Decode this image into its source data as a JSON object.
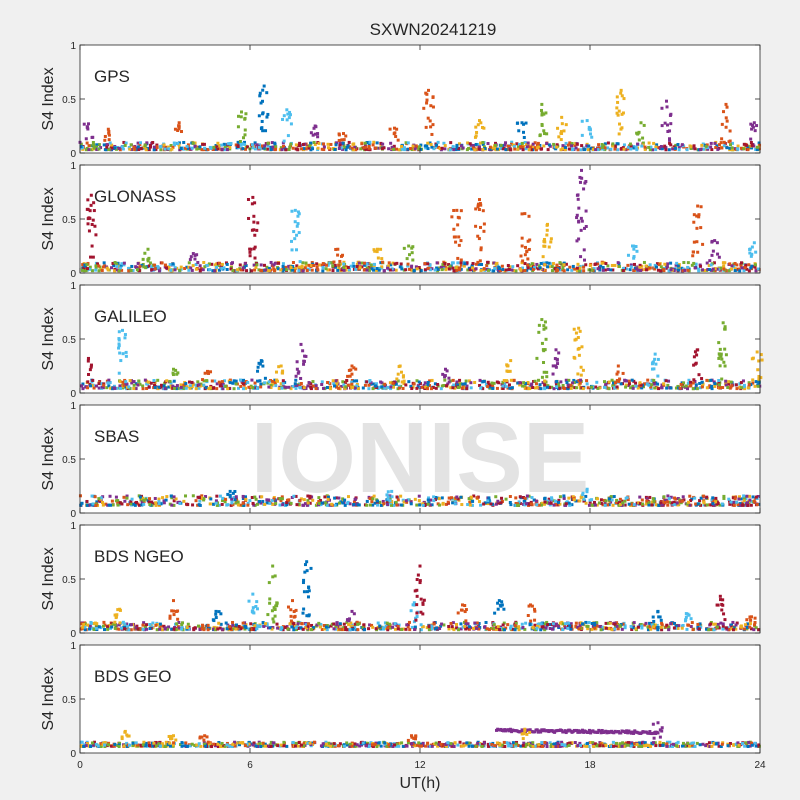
{
  "figure": {
    "title": "SXWN20241219",
    "xlabel": "UT(h)",
    "watermark": "IONISE",
    "colors": [
      "#0072BD",
      "#D95319",
      "#EDB120",
      "#7E2F8E",
      "#77AC30",
      "#4DBEEE",
      "#A2142F"
    ]
  },
  "chart_data": [
    {
      "type": "scatter",
      "label": "GPS",
      "ylabel": "S4 Index",
      "xlim": [
        0,
        24
      ],
      "ylim": [
        0,
        1
      ],
      "xticks": [
        0,
        6,
        12,
        18,
        24
      ],
      "yticks": [
        0,
        0.5,
        1
      ],
      "ytick_labels": [
        "0",
        "0.5",
        "1"
      ],
      "baseline": [
        0.03,
        0.1
      ],
      "spikes": [
        {
          "x": 0.3,
          "y": 0.27,
          "c": 3
        },
        {
          "x": 1.0,
          "y": 0.22,
          "c": 1
        },
        {
          "x": 3.5,
          "y": 0.28,
          "c": 1
        },
        {
          "x": 5.7,
          "y": 0.38,
          "c": 4
        },
        {
          "x": 6.5,
          "y": 0.62,
          "c": 0
        },
        {
          "x": 7.3,
          "y": 0.4,
          "c": 5
        },
        {
          "x": 8.3,
          "y": 0.25,
          "c": 3
        },
        {
          "x": 9.3,
          "y": 0.18,
          "c": 1
        },
        {
          "x": 11.1,
          "y": 0.23,
          "c": 1
        },
        {
          "x": 12.3,
          "y": 0.58,
          "c": 1
        },
        {
          "x": 14.1,
          "y": 0.3,
          "c": 2
        },
        {
          "x": 15.6,
          "y": 0.28,
          "c": 0
        },
        {
          "x": 16.3,
          "y": 0.45,
          "c": 4
        },
        {
          "x": 17.0,
          "y": 0.33,
          "c": 2
        },
        {
          "x": 17.9,
          "y": 0.3,
          "c": 5
        },
        {
          "x": 19.1,
          "y": 0.58,
          "c": 2
        },
        {
          "x": 19.8,
          "y": 0.28,
          "c": 4
        },
        {
          "x": 20.7,
          "y": 0.48,
          "c": 3
        },
        {
          "x": 22.8,
          "y": 0.45,
          "c": 1
        },
        {
          "x": 23.8,
          "y": 0.28,
          "c": 3
        }
      ]
    },
    {
      "type": "scatter",
      "label": "GLONASS",
      "ylabel": "S4 Index",
      "xlim": [
        0,
        24
      ],
      "ylim": [
        0,
        1
      ],
      "xticks": [
        0,
        6,
        12,
        18,
        24
      ],
      "yticks": [
        0,
        0.5,
        1
      ],
      "ytick_labels": [
        "0",
        "0.5",
        "1"
      ],
      "baseline": [
        0.02,
        0.1
      ],
      "spikes": [
        {
          "x": 0.4,
          "y": 0.72,
          "c": 6
        },
        {
          "x": 2.4,
          "y": 0.22,
          "c": 4
        },
        {
          "x": 4.0,
          "y": 0.18,
          "c": 3
        },
        {
          "x": 6.1,
          "y": 0.7,
          "c": 6
        },
        {
          "x": 7.6,
          "y": 0.58,
          "c": 5
        },
        {
          "x": 9.1,
          "y": 0.22,
          "c": 1
        },
        {
          "x": 10.5,
          "y": 0.22,
          "c": 2
        },
        {
          "x": 11.6,
          "y": 0.25,
          "c": 4
        },
        {
          "x": 13.3,
          "y": 0.58,
          "c": 1
        },
        {
          "x": 14.1,
          "y": 0.68,
          "c": 1
        },
        {
          "x": 15.7,
          "y": 0.55,
          "c": 1
        },
        {
          "x": 16.5,
          "y": 0.45,
          "c": 2
        },
        {
          "x": 17.7,
          "y": 0.95,
          "c": 3
        },
        {
          "x": 19.5,
          "y": 0.25,
          "c": 5
        },
        {
          "x": 21.8,
          "y": 0.62,
          "c": 1
        },
        {
          "x": 22.4,
          "y": 0.3,
          "c": 3
        },
        {
          "x": 23.8,
          "y": 0.28,
          "c": 5
        }
      ]
    },
    {
      "type": "scatter",
      "label": "GALILEO",
      "ylabel": "S4 Index",
      "xlim": [
        0,
        24
      ],
      "ylim": [
        0,
        1
      ],
      "xticks": [
        0,
        6,
        12,
        18,
        24
      ],
      "yticks": [
        0,
        0.5,
        1
      ],
      "ytick_labels": [
        "0",
        "0.5",
        "1"
      ],
      "baseline": [
        0.04,
        0.12
      ],
      "spikes": [
        {
          "x": 0.3,
          "y": 0.32,
          "c": 6
        },
        {
          "x": 1.5,
          "y": 0.58,
          "c": 5
        },
        {
          "x": 3.3,
          "y": 0.22,
          "c": 4
        },
        {
          "x": 4.5,
          "y": 0.2,
          "c": 1
        },
        {
          "x": 6.4,
          "y": 0.3,
          "c": 0
        },
        {
          "x": 7.1,
          "y": 0.25,
          "c": 2
        },
        {
          "x": 7.8,
          "y": 0.45,
          "c": 3
        },
        {
          "x": 9.6,
          "y": 0.25,
          "c": 1
        },
        {
          "x": 11.3,
          "y": 0.25,
          "c": 2
        },
        {
          "x": 12.9,
          "y": 0.22,
          "c": 3
        },
        {
          "x": 15.2,
          "y": 0.3,
          "c": 2
        },
        {
          "x": 16.3,
          "y": 0.68,
          "c": 4
        },
        {
          "x": 16.8,
          "y": 0.4,
          "c": 3
        },
        {
          "x": 17.6,
          "y": 0.6,
          "c": 2
        },
        {
          "x": 19.0,
          "y": 0.25,
          "c": 1
        },
        {
          "x": 20.3,
          "y": 0.36,
          "c": 5
        },
        {
          "x": 21.8,
          "y": 0.4,
          "c": 6
        },
        {
          "x": 22.7,
          "y": 0.65,
          "c": 4
        },
        {
          "x": 23.9,
          "y": 0.38,
          "c": 2
        }
      ]
    },
    {
      "type": "scatter",
      "label": "SBAS",
      "ylabel": "S4 Index",
      "xlim": [
        0,
        24
      ],
      "ylim": [
        0,
        1
      ],
      "xticks": [
        0,
        6,
        12,
        18,
        24
      ],
      "yticks": [
        0,
        0.5,
        1
      ],
      "ytick_labels": [
        "0",
        "0.5",
        "1"
      ],
      "baseline": [
        0.07,
        0.16
      ],
      "spikes": [
        {
          "x": 5.3,
          "y": 0.2,
          "c": 0
        },
        {
          "x": 11.0,
          "y": 0.2,
          "c": 5
        },
        {
          "x": 17.9,
          "y": 0.22,
          "c": 5
        }
      ]
    },
    {
      "type": "scatter",
      "label": "BDS NGEO",
      "ylabel": "S4 Index",
      "xlim": [
        0,
        24
      ],
      "ylim": [
        0,
        1
      ],
      "xticks": [
        0,
        6,
        12,
        18,
        24
      ],
      "yticks": [
        0,
        0.5,
        1
      ],
      "ytick_labels": [
        "0",
        "0.5",
        "1"
      ],
      "baseline": [
        0.03,
        0.1
      ],
      "spikes": [
        {
          "x": 1.4,
          "y": 0.22,
          "c": 2
        },
        {
          "x": 3.3,
          "y": 0.3,
          "c": 1
        },
        {
          "x": 4.8,
          "y": 0.2,
          "c": 0
        },
        {
          "x": 6.1,
          "y": 0.36,
          "c": 5
        },
        {
          "x": 6.8,
          "y": 0.62,
          "c": 4
        },
        {
          "x": 7.5,
          "y": 0.3,
          "c": 1
        },
        {
          "x": 8.0,
          "y": 0.66,
          "c": 0
        },
        {
          "x": 9.6,
          "y": 0.2,
          "c": 3
        },
        {
          "x": 11.8,
          "y": 0.28,
          "c": 5
        },
        {
          "x": 12.0,
          "y": 0.62,
          "c": 6
        },
        {
          "x": 13.5,
          "y": 0.26,
          "c": 1
        },
        {
          "x": 14.8,
          "y": 0.3,
          "c": 0
        },
        {
          "x": 15.9,
          "y": 0.26,
          "c": 1
        },
        {
          "x": 20.4,
          "y": 0.2,
          "c": 0
        },
        {
          "x": 21.4,
          "y": 0.18,
          "c": 5
        },
        {
          "x": 22.6,
          "y": 0.34,
          "c": 6
        },
        {
          "x": 23.7,
          "y": 0.15,
          "c": 1
        }
      ]
    },
    {
      "type": "scatter",
      "label": "BDS GEO",
      "ylabel": "S4 Index",
      "xlim": [
        0,
        24
      ],
      "ylim": [
        0,
        1
      ],
      "xticks": [
        0,
        6,
        12,
        18,
        24
      ],
      "yticks": [
        0,
        0.5,
        1
      ],
      "ytick_labels": [
        "0",
        "0.5",
        "1"
      ],
      "baseline": [
        0.06,
        0.1
      ],
      "band": {
        "x0": 14.7,
        "x1": 20.4,
        "y0": 0.21,
        "y1": 0.19,
        "c": 3
      },
      "spikes": [
        {
          "x": 1.6,
          "y": 0.2,
          "c": 2
        },
        {
          "x": 3.3,
          "y": 0.16,
          "c": 2
        },
        {
          "x": 4.4,
          "y": 0.16,
          "c": 1
        },
        {
          "x": 11.7,
          "y": 0.16,
          "c": 1
        },
        {
          "x": 15.7,
          "y": 0.22,
          "c": 2
        },
        {
          "x": 20.4,
          "y": 0.28,
          "c": 3
        }
      ]
    }
  ]
}
